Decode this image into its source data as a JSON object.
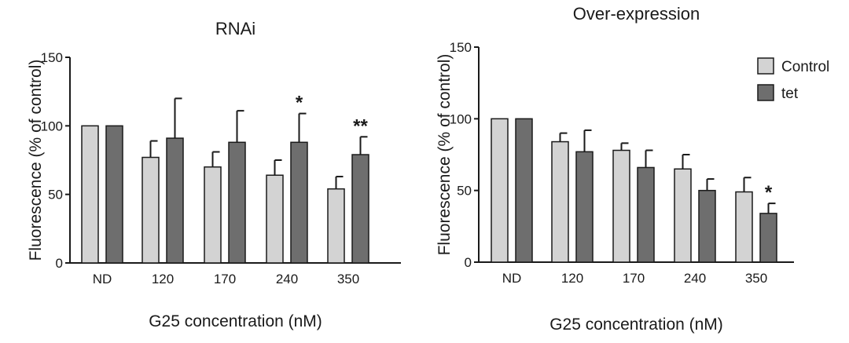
{
  "chart_data": [
    {
      "type": "bar",
      "title": "RNAi",
      "xlabel": "G25 concentration (nM)",
      "ylabel": "Fluorescence (% of control)",
      "ylim": [
        0,
        150
      ],
      "yticks": [
        0,
        50,
        100,
        150
      ],
      "categories": [
        "ND",
        "120",
        "170",
        "240",
        "350"
      ],
      "series": [
        {
          "name": "Control",
          "color": "#d3d3d3",
          "values": [
            100,
            77,
            70,
            64,
            54
          ],
          "errors": [
            0,
            12,
            11,
            11,
            9
          ]
        },
        {
          "name": "tet",
          "color": "#6e6e6e",
          "values": [
            100,
            91,
            88,
            88,
            79
          ],
          "errors": [
            0,
            29,
            23,
            21,
            13
          ]
        }
      ],
      "annotations": [
        {
          "category": "240",
          "series": "tet",
          "text": "*"
        },
        {
          "category": "350",
          "series": "tet",
          "text": "**"
        }
      ],
      "legend": "none",
      "grid": false
    },
    {
      "type": "bar",
      "title": "Over-expression",
      "xlabel": "G25 concentration (nM)",
      "ylabel": "Fluorescence (% of control)",
      "ylim": [
        0,
        150
      ],
      "yticks": [
        0,
        50,
        100,
        150
      ],
      "categories": [
        "ND",
        "120",
        "170",
        "240",
        "350"
      ],
      "series": [
        {
          "name": "Control",
          "color": "#d3d3d3",
          "values": [
            100,
            84,
            78,
            65,
            49
          ],
          "errors": [
            0,
            6,
            5,
            10,
            10
          ]
        },
        {
          "name": "tet",
          "color": "#6e6e6e",
          "values": [
            100,
            77,
            66,
            50,
            34
          ],
          "errors": [
            0,
            15,
            12,
            8,
            7
          ]
        }
      ],
      "annotations": [
        {
          "category": "350",
          "series": "tet",
          "text": "*"
        }
      ],
      "legend": "top-right",
      "grid": false
    }
  ]
}
